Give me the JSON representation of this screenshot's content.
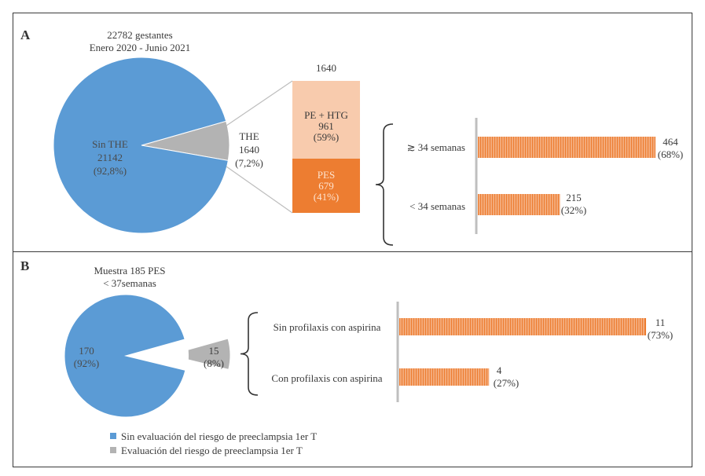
{
  "colors": {
    "blue": "#5b9bd5",
    "gray": "#b3b3b3",
    "peach": "#f8cbad",
    "orange": "#ed7d31",
    "bar_orange": "#ed7d31",
    "axis_gray": "#bfbfbf",
    "text": "#3a3a3a",
    "white_text": "#ffffff"
  },
  "chart_data": [
    {
      "id": "A-pie",
      "type": "pie",
      "panel_label": "A",
      "title": "22782 gestantes",
      "subtitle": "Enero 2020 - Junio 2021",
      "slices": [
        {
          "label": "Sin THE",
          "value": 21142,
          "percent": "(92,8%)",
          "color": "#5b9bd5"
        },
        {
          "label": "THE",
          "value": 1640,
          "percent": "(7,2%)",
          "color": "#b3b3b3"
        }
      ]
    },
    {
      "id": "A-stack",
      "type": "bar",
      "title": "1640",
      "series": [
        {
          "name": "PE + HTG",
          "values": [
            961
          ],
          "percent": "(59%)",
          "color": "#f8cbad"
        },
        {
          "name": "PES",
          "values": [
            679
          ],
          "percent": "(41%)",
          "color": "#ed7d31"
        }
      ]
    },
    {
      "id": "A-bars",
      "type": "bar",
      "orientation": "horizontal",
      "categories": [
        "≳ 34 semanas",
        "< 34 semanas"
      ],
      "values": [
        464,
        215
      ],
      "labels": [
        "464",
        "215"
      ],
      "percents": [
        "(68%)",
        "(32%)"
      ],
      "xlim": [
        0,
        464
      ]
    },
    {
      "id": "B-pie",
      "type": "pie",
      "panel_label": "B",
      "title": "Muestra 185 PES",
      "subtitle": "< 37semanas",
      "slices": [
        {
          "label": "170",
          "value": 170,
          "percent": "(92%)",
          "color": "#5b9bd5"
        },
        {
          "label": "15",
          "value": 15,
          "percent": "(8%)",
          "color": "#b3b3b3"
        }
      ],
      "legend": [
        {
          "label": "Sin evaluación del riesgo de preeclampsia 1er T",
          "color": "#5b9bd5"
        },
        {
          "label": "Evaluación del riesgo de preeclampsia 1er T",
          "color": "#b3b3b3"
        }
      ]
    },
    {
      "id": "B-bars",
      "type": "bar",
      "orientation": "horizontal",
      "categories": [
        "Sin profilaxis con aspirina",
        "Con profilaxis con aspirina"
      ],
      "values": [
        11,
        4
      ],
      "labels": [
        "11",
        "4"
      ],
      "percents": [
        "(73%)",
        "(27%)"
      ],
      "xlim": [
        0,
        11
      ]
    }
  ]
}
